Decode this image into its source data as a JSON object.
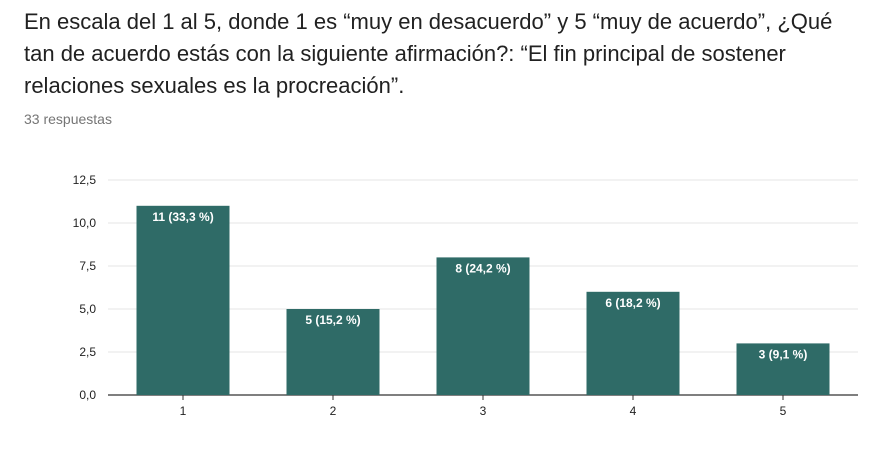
{
  "question": {
    "text": "En escala del 1 al 5, donde 1 es “muy en desacuerdo” y 5 “muy de acuerdo”, ¿Qué tan de acuerdo estás con la siguiente afirmación?: “El fin principal de sostener relaciones sexuales es la procreación”."
  },
  "responses_count": "33 respuestas",
  "colors": {
    "bar": "#2f6b67",
    "grid": "#e6e6e6",
    "axis": "#333333"
  },
  "chart_data": {
    "type": "bar",
    "categories": [
      "1",
      "2",
      "3",
      "4",
      "5"
    ],
    "values": [
      11,
      5,
      8,
      6,
      3
    ],
    "data_labels": [
      "11 (33,3 %)",
      "5 (15,2 %)",
      "8 (24,2 %)",
      "6 (18,2 %)",
      "3 (9,1 %)"
    ],
    "ylim": [
      0,
      12.5
    ],
    "yticks": [
      0,
      2.5,
      5,
      7.5,
      10,
      12.5
    ],
    "ytick_labels": [
      "0,0",
      "2,5",
      "5,0",
      "7,5",
      "10,0",
      "12,5"
    ],
    "grid": true,
    "legend": false
  }
}
